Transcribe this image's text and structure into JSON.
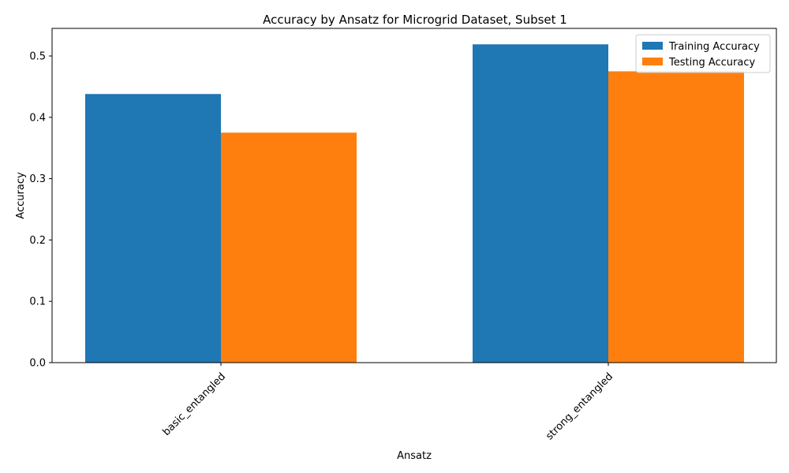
{
  "chart_data": {
    "type": "bar",
    "title": "Accuracy by Ansatz for Microgrid Dataset, Subset 1",
    "xlabel": "Ansatz",
    "ylabel": "Accuracy",
    "categories": [
      "basic_entangled",
      "strong_entangled"
    ],
    "series": [
      {
        "name": "Training Accuracy",
        "values": [
          0.438,
          0.519
        ],
        "color": "#1f77b4"
      },
      {
        "name": "Testing Accuracy",
        "values": [
          0.375,
          0.475
        ],
        "color": "#ff7f0e"
      }
    ],
    "ylim": [
      0,
      0.545
    ],
    "yticks": [
      "0.0",
      "0.1",
      "0.2",
      "0.3",
      "0.4",
      "0.5"
    ],
    "grid": false,
    "legend_position": "top-right"
  }
}
